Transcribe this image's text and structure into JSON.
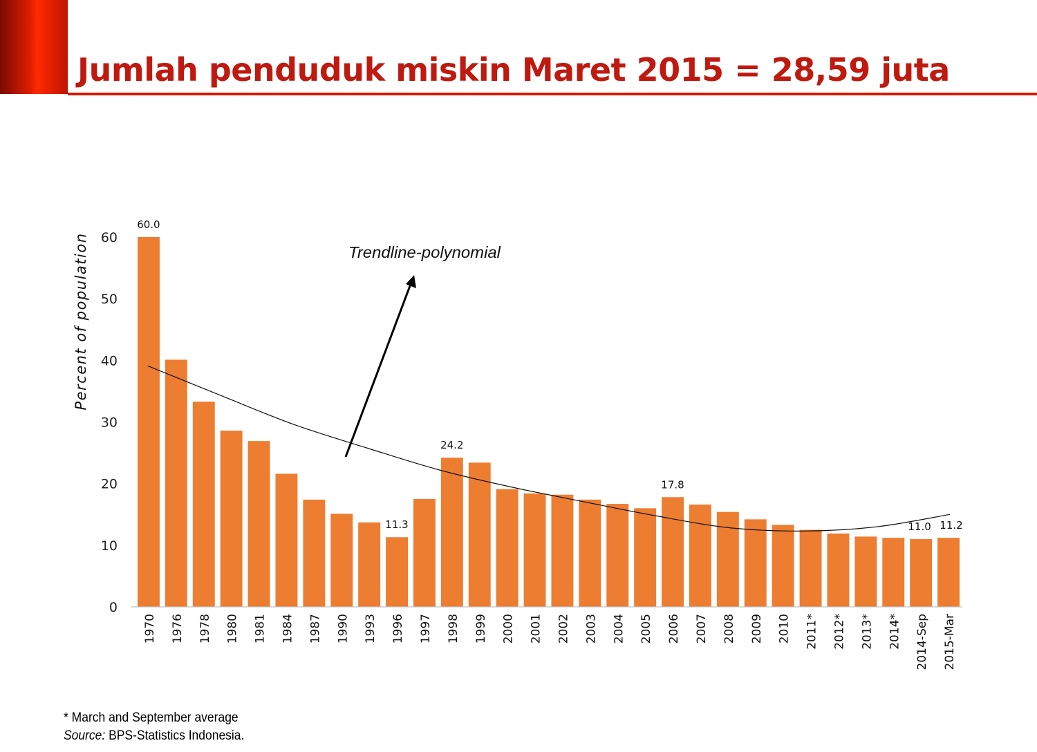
{
  "slide": {
    "title": "Jumlah penduduk miskin Maret 2015 = 28,59 juta"
  },
  "colors": {
    "accent": "#c0190f",
    "bar": "#ed7d31"
  },
  "chart_data": {
    "type": "bar",
    "ylabel": "Percent of population",
    "ylim": [
      0,
      60
    ],
    "yticks": [
      0,
      10,
      20,
      30,
      40,
      50,
      60
    ],
    "categories": [
      "1970",
      "1976",
      "1978",
      "1980",
      "1981",
      "1984",
      "1987",
      "1990",
      "1993",
      "1996",
      "1997",
      "1998",
      "1999",
      "2000",
      "2001",
      "2002",
      "2003",
      "2004",
      "2005",
      "2006",
      "2007",
      "2008",
      "2009",
      "2010",
      "2011*",
      "2012*",
      "2013*",
      "2014*",
      "2014-Sep",
      "2015-Mar"
    ],
    "values": [
      60.0,
      40.1,
      33.3,
      28.6,
      26.9,
      21.6,
      17.4,
      15.1,
      13.7,
      11.3,
      17.5,
      24.2,
      23.4,
      19.1,
      18.4,
      18.2,
      17.4,
      16.7,
      16.0,
      17.8,
      16.6,
      15.4,
      14.2,
      13.3,
      12.5,
      11.9,
      11.4,
      11.2,
      11.0,
      11.2
    ],
    "data_labels": [
      {
        "index": 0,
        "text": "60.0"
      },
      {
        "index": 9,
        "text": "11.3"
      },
      {
        "index": 11,
        "text": "24.2"
      },
      {
        "index": 19,
        "text": "17.8"
      },
      {
        "index": 28,
        "text": "11.0"
      },
      {
        "index": 29,
        "text": "11.2"
      }
    ],
    "trendline": {
      "label": "Trendline-polynomial",
      "values": [
        39.1,
        34.3,
        29.6,
        25.8,
        22.2,
        19.4,
        17.0,
        14.7,
        12.8,
        12.3,
        13.0,
        15.0
      ]
    },
    "grid": false,
    "legend": "none"
  },
  "notes": {
    "footnote": "* March and September average",
    "source_label": "Source:",
    "source_text": "BPS-Statistics Indonesia."
  }
}
